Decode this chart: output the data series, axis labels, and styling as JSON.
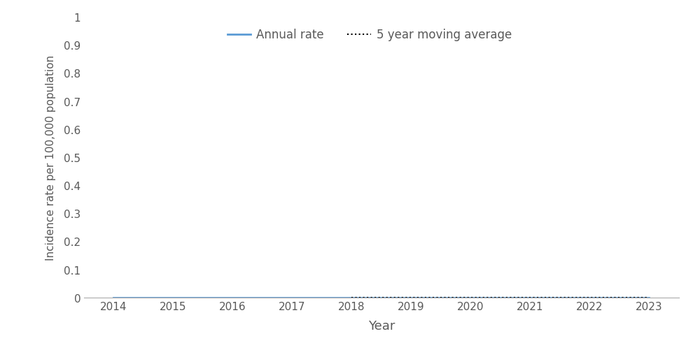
{
  "years": [
    2014,
    2015,
    2016,
    2017,
    2018,
    2019,
    2020,
    2021,
    2022,
    2023
  ],
  "annual_rate": [
    0.0,
    0.0,
    0.0,
    0.0,
    0.0,
    0.0,
    0.0,
    0.0,
    0.0,
    0.0
  ],
  "moving_avg": [
    null,
    null,
    null,
    null,
    0.0,
    0.0,
    0.0,
    0.0,
    0.0,
    0.0
  ],
  "annual_color": "#5B9BD5",
  "moving_avg_color": "#000000",
  "xlabel": "Year",
  "ylabel": "Incidence rate per 100,000 population",
  "ylim": [
    0,
    1.0
  ],
  "yticks": [
    0,
    0.1,
    0.2,
    0.3,
    0.4,
    0.5,
    0.6,
    0.7,
    0.8,
    0.9,
    1.0
  ],
  "ytick_labels": [
    "0",
    "0.1",
    "0.2",
    "0.3",
    "0.4",
    "0.5",
    "0.6",
    "0.7",
    "0.8",
    "0.9",
    "1"
  ],
  "xlim": [
    2013.5,
    2023.5
  ],
  "xticks": [
    2014,
    2015,
    2016,
    2017,
    2018,
    2019,
    2020,
    2021,
    2022,
    2023
  ],
  "legend_annual": "Annual rate",
  "legend_moving": "5 year moving average",
  "annual_linewidth": 2.0,
  "moving_linewidth": 1.5,
  "background_color": "#ffffff",
  "axis_color": "#aaaaaa",
  "tick_label_color": "#595959",
  "xlabel_fontsize": 13,
  "ylabel_fontsize": 11,
  "tick_fontsize": 11,
  "legend_fontsize": 12
}
